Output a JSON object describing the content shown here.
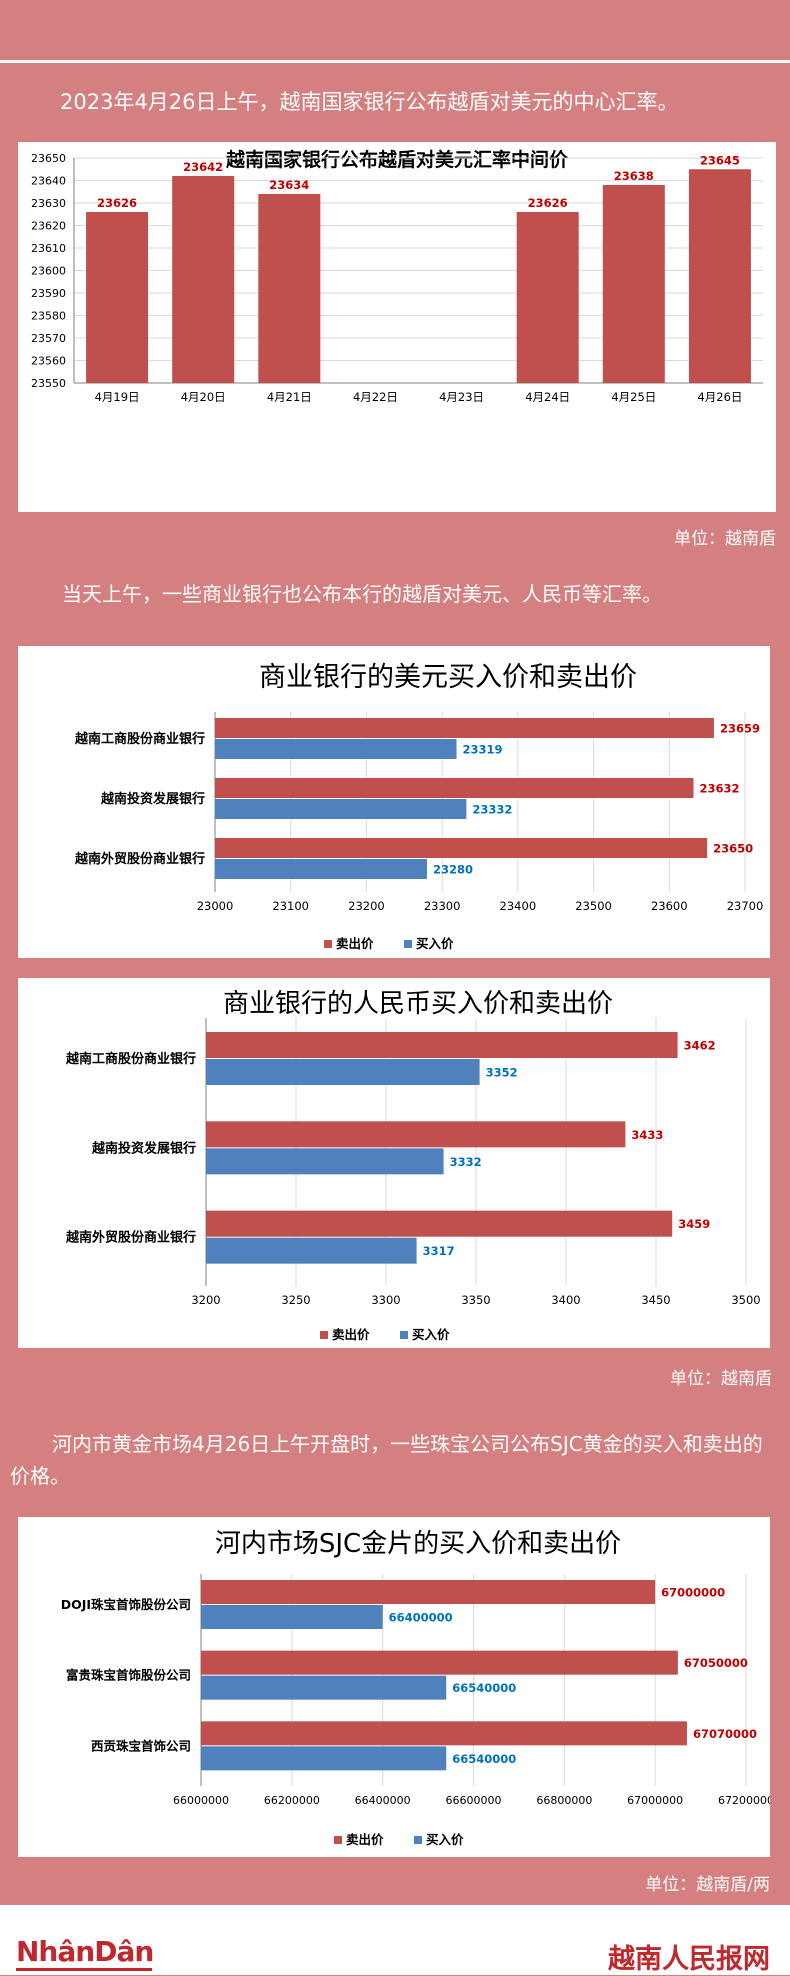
{
  "texts": {
    "intro1": "2023年4月26日上午，越南国家银行公布越盾对美元的中心汇率。",
    "unit1": "单位：越南盾",
    "intro2": "当天上午，一些商业银行也公布本行的越盾对美元、人民币等汇率。",
    "unit2": "单位：越南盾",
    "intro3": "河内市黄金市场4月26日上午开盘时，一些珠宝公司公布SJC黄金的买入和卖出的价格。",
    "unit3": "单位：越南盾/两"
  },
  "footer": {
    "logo_left": "NhânDân",
    "logo_right": "越南人民报网"
  },
  "colors": {
    "sell": "#c0504d",
    "buy": "#4f81bd",
    "sell_label": "#c00000",
    "buy_label": "#0070c0",
    "background": "#d47f80"
  },
  "chart_data": [
    {
      "type": "bar",
      "title": "越南国家银行公布越盾对美元汇率中间价",
      "categories": [
        "4月19日",
        "4月20日",
        "4月21日",
        "4月22日",
        "4月23日",
        "4月24日",
        "4月25日",
        "4月26日"
      ],
      "values": [
        23626,
        23642,
        23634,
        null,
        null,
        23626,
        23638,
        23645
      ],
      "value_labels": [
        "23626",
        "23642",
        "23634",
        "",
        "",
        "23626",
        "23638",
        "23645"
      ],
      "ylim": [
        23550,
        23650
      ],
      "yticks": [
        "23650",
        "23640",
        "23630",
        "23620",
        "23610",
        "23600",
        "23590",
        "23580",
        "23570",
        "23560",
        "23550"
      ],
      "grid": true
    },
    {
      "type": "bar",
      "orientation": "horizontal",
      "title": "商业银行的美元买入价和卖出价",
      "categories": [
        "越南工商股份商业银行",
        "越南投资发展银行",
        "越南外贸股份商业银行"
      ],
      "series": [
        {
          "name": "卖出价",
          "values": [
            23659,
            23632,
            23650
          ],
          "labels": [
            "23659",
            "23632",
            "23650"
          ]
        },
        {
          "name": "买入价",
          "values": [
            23319,
            23332,
            23280
          ],
          "labels": [
            "23319",
            "23332",
            "23280"
          ]
        }
      ],
      "xlim": [
        23000,
        23700
      ],
      "xticks": [
        "23000",
        "23100",
        "23200",
        "23300",
        "23400",
        "23500",
        "23600",
        "23700"
      ],
      "legend": "bottom",
      "grid": true
    },
    {
      "type": "bar",
      "orientation": "horizontal",
      "title": "商业银行的人民币买入价和卖出价",
      "categories": [
        "越南工商股份商业银行",
        "越南投资发展银行",
        "越南外贸股份商业银行"
      ],
      "series": [
        {
          "name": "卖出价",
          "values": [
            3462,
            3433,
            3459
          ],
          "labels": [
            "3462",
            "3433",
            "3459"
          ]
        },
        {
          "name": "买入价",
          "values": [
            3352,
            3332,
            3317
          ],
          "labels": [
            "3352",
            "3332",
            "3317"
          ]
        }
      ],
      "xlim": [
        3200,
        3500
      ],
      "xticks": [
        "3200",
        "3250",
        "3300",
        "3350",
        "3400",
        "3450",
        "3500"
      ],
      "legend": "bottom",
      "grid": true
    },
    {
      "type": "bar",
      "orientation": "horizontal",
      "title": "河内市场SJC金片的买入价和卖出价",
      "categories": [
        "DOJI珠宝首饰股份公司",
        "富贵珠宝首饰股份公司",
        "西贡珠宝首饰公司"
      ],
      "series": [
        {
          "name": "卖出价",
          "values": [
            67000000,
            67050000,
            67070000
          ],
          "labels": [
            "67000000",
            "67050000",
            "67070000"
          ]
        },
        {
          "name": "买入价",
          "values": [
            66400000,
            66540000,
            66540000
          ],
          "labels": [
            "66400000",
            "66540000",
            "66540000"
          ]
        }
      ],
      "xlim": [
        66000000,
        67200000
      ],
      "xticks": [
        "66000000",
        "66200000",
        "66400000",
        "66600000",
        "66800000",
        "67000000",
        "67200000"
      ],
      "legend": "bottom",
      "grid": true
    }
  ]
}
